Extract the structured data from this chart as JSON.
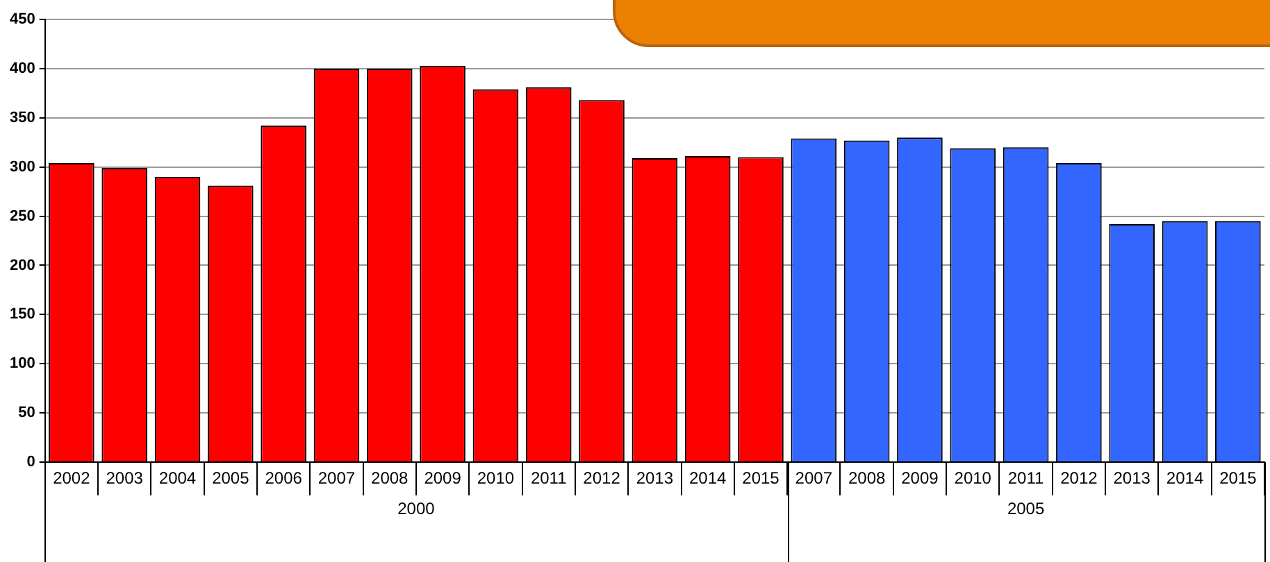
{
  "chart_data": {
    "type": "bar",
    "categories": [
      "2002",
      "2003",
      "2004",
      "2005",
      "2006",
      "2007",
      "2008",
      "2009",
      "2010",
      "2011",
      "2012",
      "2013",
      "2014",
      "2015",
      "2007",
      "2008",
      "2009",
      "2010",
      "2011",
      "2012",
      "2013",
      "2014",
      "2015"
    ],
    "series": [
      {
        "name": "2000",
        "color": "#ff0000",
        "values": [
          304,
          299,
          290,
          281,
          342,
          400,
          400,
          403,
          379,
          381,
          368,
          309,
          311,
          310,
          null,
          null,
          null,
          null,
          null,
          null,
          null,
          null,
          null
        ]
      },
      {
        "name": "2005",
        "color": "#3366ff",
        "values": [
          null,
          null,
          null,
          null,
          null,
          null,
          null,
          null,
          null,
          null,
          null,
          null,
          null,
          null,
          329,
          327,
          330,
          319,
          320,
          304,
          242,
          245,
          245
        ]
      }
    ],
    "ylim": [
      0,
      450
    ],
    "yticks": [
      0,
      50,
      100,
      150,
      200,
      250,
      300,
      350,
      400,
      450
    ],
    "grid": "y",
    "legend": "bottom"
  }
}
